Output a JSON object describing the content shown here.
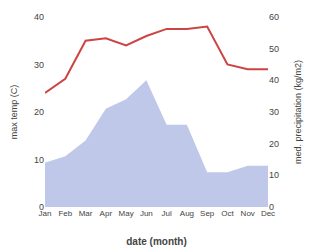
{
  "chart_data": {
    "type": "line",
    "categories": [
      "Jan",
      "Feb",
      "Mar",
      "Apr",
      "May",
      "Jun",
      "Jul",
      "Aug",
      "Sep",
      "Oct",
      "Nov",
      "Dec"
    ],
    "series": [
      {
        "type": "area",
        "axis": "y2",
        "color": "#bfc8e8",
        "values": [
          14,
          16,
          21,
          31,
          34,
          40,
          26,
          26,
          11,
          11,
          13,
          13
        ]
      },
      {
        "type": "line",
        "color": "#cc4444",
        "values": [
          24,
          27,
          35,
          35.5,
          34,
          36,
          37.5,
          37.5,
          38,
          30,
          29,
          29
        ]
      }
    ],
    "xlabel": "date (month)",
    "ylabel": "max temp (C)",
    "y2label": "med. precipitation (kg/m2)",
    "ylim": [
      0,
      40
    ],
    "yticks": [
      0,
      10,
      20,
      30,
      40
    ],
    "y2lim": [
      0,
      60
    ],
    "y2ticks": [
      0,
      10,
      20,
      30,
      40,
      50,
      60
    ],
    "grid": false
  }
}
